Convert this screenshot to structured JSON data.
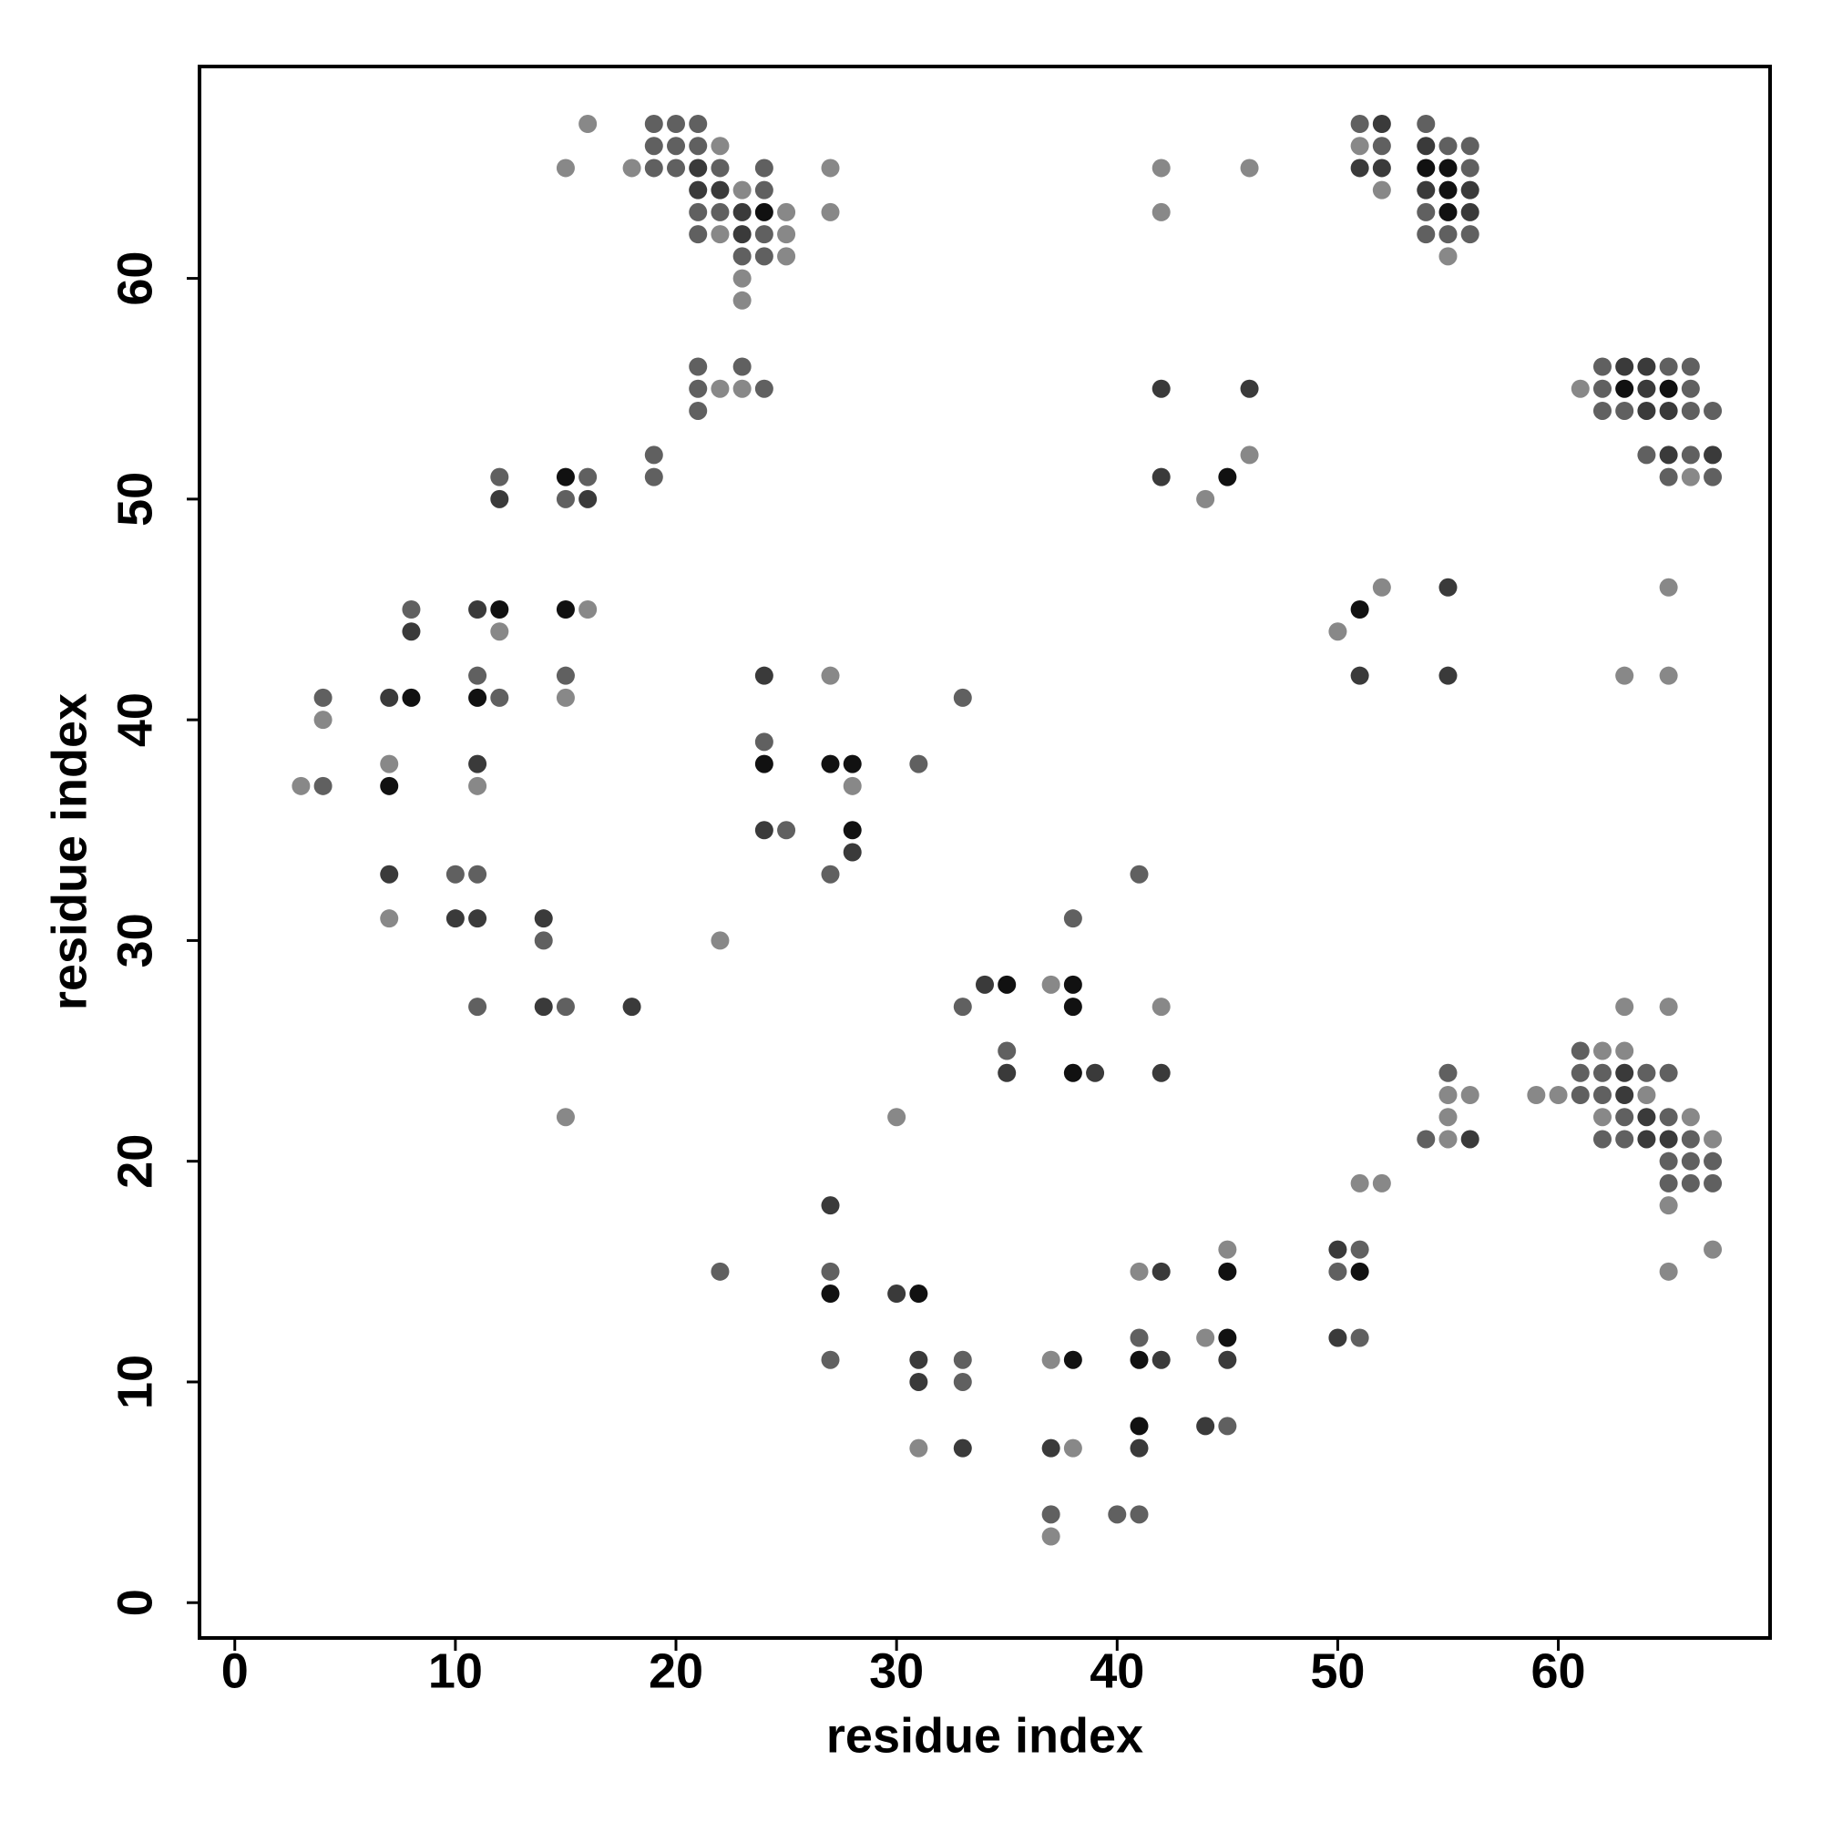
{
  "chart_data": {
    "type": "scatter",
    "xlabel": "residue index",
    "ylabel": "residue index",
    "xlim": [
      -1.6,
      69.6
    ],
    "ylim": [
      -1.6,
      69.6
    ],
    "xticks": [
      0,
      10,
      20,
      30,
      40,
      50,
      60
    ],
    "yticks": [
      0,
      10,
      20,
      30,
      40,
      50,
      60
    ],
    "grid": false,
    "x": [
      16,
      19,
      20,
      21,
      51,
      52,
      54,
      19,
      20,
      21,
      22,
      51,
      52,
      54,
      55,
      56,
      15,
      18,
      19,
      20,
      21,
      22,
      24,
      27,
      42,
      46,
      51,
      52,
      54,
      55,
      56,
      21,
      22,
      23,
      24,
      52,
      54,
      55,
      56,
      21,
      22,
      23,
      24,
      25,
      27,
      42,
      54,
      55,
      56,
      21,
      22,
      23,
      24,
      25,
      54,
      55,
      56,
      23,
      24,
      25,
      55,
      23,
      23,
      21,
      23,
      62,
      63,
      64,
      65,
      66,
      21,
      22,
      23,
      24,
      42,
      46,
      61,
      62,
      63,
      64,
      65,
      66,
      21,
      62,
      63,
      64,
      65,
      66,
      67,
      19,
      46,
      64,
      65,
      66,
      67,
      12,
      15,
      16,
      19,
      42,
      45,
      65,
      66,
      67,
      12,
      15,
      16,
      44,
      52,
      55,
      65,
      8,
      11,
      12,
      15,
      16,
      51,
      8,
      12,
      50,
      11,
      15,
      24,
      27,
      51,
      55,
      63,
      65,
      4,
      7,
      8,
      11,
      12,
      15,
      33,
      4,
      24,
      7,
      11,
      24,
      27,
      28,
      31,
      3,
      4,
      7,
      11,
      28,
      24,
      25,
      28,
      28,
      7,
      10,
      11,
      27,
      41,
      7,
      10,
      11,
      14,
      38,
      14,
      22,
      34,
      35,
      37,
      38,
      11,
      14,
      15,
      18,
      33,
      38,
      42,
      63,
      65,
      35,
      61,
      62,
      63,
      35,
      38,
      39,
      42,
      55,
      61,
      62,
      63,
      64,
      65,
      55,
      56,
      59,
      60,
      61,
      62,
      63,
      64,
      15,
      30,
      55,
      62,
      63,
      64,
      65,
      66,
      54,
      55,
      56,
      62,
      63,
      64,
      65,
      66,
      67,
      65,
      66,
      67,
      51,
      52,
      65,
      66,
      67,
      27,
      65,
      45,
      50,
      51,
      67,
      22,
      27,
      41,
      42,
      45,
      50,
      51,
      65,
      27,
      30,
      31,
      41,
      44,
      45,
      50,
      51,
      27,
      31,
      33,
      37,
      38,
      41,
      42,
      45,
      31,
      33,
      41,
      44,
      45,
      31,
      33,
      37,
      38,
      41,
      37,
      40,
      41,
      37
    ],
    "y": [
      67,
      67,
      67,
      67,
      67,
      67,
      67,
      66,
      66,
      66,
      66,
      66,
      66,
      66,
      66,
      66,
      65,
      65,
      65,
      65,
      65,
      65,
      65,
      65,
      65,
      65,
      65,
      65,
      65,
      65,
      65,
      64,
      64,
      64,
      64,
      64,
      64,
      64,
      64,
      63,
      63,
      63,
      63,
      63,
      63,
      63,
      63,
      63,
      63,
      62,
      62,
      62,
      62,
      62,
      62,
      62,
      62,
      61,
      61,
      61,
      61,
      60,
      59,
      56,
      56,
      56,
      56,
      56,
      56,
      56,
      55,
      55,
      55,
      55,
      55,
      55,
      55,
      55,
      55,
      55,
      55,
      55,
      54,
      54,
      54,
      54,
      54,
      54,
      54,
      52,
      52,
      52,
      52,
      52,
      52,
      51,
      51,
      51,
      51,
      51,
      51,
      51,
      51,
      51,
      50,
      50,
      50,
      50,
      46,
      46,
      46,
      45,
      45,
      45,
      45,
      45,
      45,
      44,
      44,
      44,
      42,
      42,
      42,
      42,
      42,
      42,
      42,
      42,
      41,
      41,
      41,
      41,
      41,
      41,
      41,
      40,
      39,
      38,
      38,
      38,
      38,
      38,
      38,
      37,
      37,
      37,
      37,
      37,
      35,
      35,
      35,
      34,
      33,
      33,
      33,
      33,
      33,
      31,
      31,
      31,
      31,
      31,
      30,
      30,
      28,
      28,
      28,
      28,
      27,
      27,
      27,
      27,
      27,
      27,
      27,
      27,
      27,
      25,
      25,
      25,
      25,
      24,
      24,
      24,
      24,
      24,
      24,
      24,
      24,
      24,
      24,
      23,
      23,
      23,
      23,
      23,
      23,
      23,
      23,
      22,
      22,
      22,
      22,
      22,
      22,
      22,
      22,
      21,
      21,
      21,
      21,
      21,
      21,
      21,
      21,
      21,
      20,
      20,
      20,
      19,
      19,
      19,
      19,
      19,
      18,
      18,
      16,
      16,
      16,
      16,
      15,
      15,
      15,
      15,
      15,
      15,
      15,
      15,
      14,
      14,
      14,
      12,
      12,
      12,
      12,
      12,
      11,
      11,
      11,
      11,
      11,
      11,
      11,
      11,
      10,
      10,
      8,
      8,
      8,
      7,
      7,
      7,
      7,
      7,
      4,
      4,
      4,
      3
    ],
    "colors": [
      "#888",
      "#606060",
      "#606060",
      "#606060",
      "#606060",
      "#3a3a3a",
      "#606060",
      "#606060",
      "#606060",
      "#606060",
      "#888",
      "#888",
      "#606060",
      "#3a3a3a",
      "#606060",
      "#606060",
      "#888",
      "#888",
      "#606060",
      "#606060",
      "#3a3a3a",
      "#606060",
      "#606060",
      "#888",
      "#888",
      "#888",
      "#3a3a3a",
      "#3a3a3a",
      "#111",
      "#111",
      "#606060",
      "#3a3a3a",
      "#3a3a3a",
      "#888",
      "#606060",
      "#888",
      "#3a3a3a",
      "#111",
      "#3a3a3a",
      "#606060",
      "#606060",
      "#3a3a3a",
      "#111",
      "#888",
      "#888",
      "#888",
      "#606060",
      "#111",
      "#3a3a3a",
      "#606060",
      "#888",
      "#3a3a3a",
      "#606060",
      "#888",
      "#606060",
      "#606060",
      "#606060",
      "#606060",
      "#606060",
      "#888",
      "#888",
      "#888",
      "#888",
      "#606060",
      "#606060",
      "#606060",
      "#3a3a3a",
      "#3a3a3a",
      "#606060",
      "#606060",
      "#606060",
      "#888",
      "#888",
      "#606060",
      "#3a3a3a",
      "#3a3a3a",
      "#888",
      "#606060",
      "#111",
      "#3a3a3a",
      "#111",
      "#606060",
      "#606060",
      "#606060",
      "#606060",
      "#3a3a3a",
      "#3a3a3a",
      "#606060",
      "#606060",
      "#606060",
      "#888",
      "#606060",
      "#3a3a3a",
      "#606060",
      "#3a3a3a",
      "#606060",
      "#111",
      "#606060",
      "#606060",
      "#3a3a3a",
      "#111",
      "#606060",
      "#888",
      "#606060",
      "#3a3a3a",
      "#606060",
      "#3a3a3a",
      "#888",
      "#888",
      "#3a3a3a",
      "#888",
      "#606060",
      "#3a3a3a",
      "#111",
      "#111",
      "#888",
      "#111",
      "#3a3a3a",
      "#888",
      "#888",
      "#606060",
      "#606060",
      "#3a3a3a",
      "#888",
      "#3a3a3a",
      "#3a3a3a",
      "#888",
      "#888",
      "#606060",
      "#3a3a3a",
      "#111",
      "#111",
      "#606060",
      "#888",
      "#606060",
      "#888",
      "#606060",
      "#888",
      "#3a3a3a",
      "#111",
      "#111",
      "#111",
      "#606060",
      "#888",
      "#606060",
      "#111",
      "#888",
      "#888",
      "#3a3a3a",
      "#606060",
      "#111",
      "#3a3a3a",
      "#3a3a3a",
      "#606060",
      "#606060",
      "#606060",
      "#606060",
      "#888",
      "#3a3a3a",
      "#3a3a3a",
      "#3a3a3a",
      "#606060",
      "#606060",
      "#888",
      "#3a3a3a",
      "#111",
      "#888",
      "#111",
      "#606060",
      "#3a3a3a",
      "#606060",
      "#3a3a3a",
      "#606060",
      "#111",
      "#888",
      "#888",
      "#888",
      "#606060",
      "#606060",
      "#888",
      "#888",
      "#3a3a3a",
      "#111",
      "#3a3a3a",
      "#3a3a3a",
      "#606060",
      "#606060",
      "#606060",
      "#3a3a3a",
      "#606060",
      "#606060",
      "#888",
      "#888",
      "#888",
      "#888",
      "#606060",
      "#606060",
      "#3a3a3a",
      "#888",
      "#888",
      "#888",
      "#888",
      "#888",
      "#606060",
      "#3a3a3a",
      "#606060",
      "#888",
      "#606060",
      "#888",
      "#3a3a3a",
      "#606060",
      "#606060",
      "#3a3a3a",
      "#3a3a3a",
      "#606060",
      "#888",
      "#606060",
      "#606060",
      "#606060",
      "#888",
      "#888",
      "#606060",
      "#606060",
      "#606060",
      "#3a3a3a",
      "#888",
      "#888",
      "#3a3a3a",
      "#606060",
      "#888",
      "#606060",
      "#606060",
      "#888",
      "#3a3a3a",
      "#111",
      "#606060",
      "#111",
      "#888",
      "#111",
      "#3a3a3a",
      "#111",
      "#606060",
      "#888",
      "#111",
      "#3a3a3a",
      "#606060",
      "#606060",
      "#3a3a3a",
      "#606060",
      "#888",
      "#111",
      "#111",
      "#3a3a3a",
      "#3a3a3a",
      "#3a3a3a",
      "#606060",
      "#111",
      "#3a3a3a",
      "#606060",
      "#888",
      "#3a3a3a",
      "#3a3a3a",
      "#888",
      "#3a3a3a",
      "#606060",
      "#606060",
      "#606060",
      "#888"
    ]
  }
}
